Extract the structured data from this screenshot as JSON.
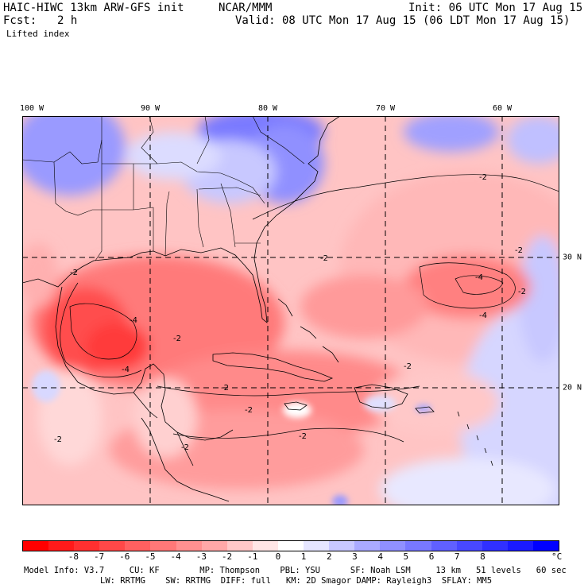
{
  "header": {
    "model": "HAIC-HIWC 13km ARW-GFS init",
    "org": "NCAR/MMM",
    "init": "Init: 06 UTC Mon 17 Aug 15",
    "fcst_label": "Fcst:",
    "fcst_value": "2 h",
    "valid": "Valid: 08 UTC Mon 17 Aug 15 (06 LDT Mon 17 Aug 15)",
    "field": "Lifted index"
  },
  "map": {
    "lon_labels": [
      "100 W",
      "90 W",
      "80 W",
      "70 W",
      "60 W"
    ],
    "lat_labels": [
      "30 N",
      "20 N"
    ],
    "contour_labels": [
      "-2",
      "-2",
      "-2",
      "-2",
      "-4",
      "-4",
      "-4",
      "-2",
      "-2",
      "-2",
      "-4",
      "-2",
      "-2",
      "-2",
      "-2",
      "-2"
    ]
  },
  "colorbar": {
    "labels": [
      "-8",
      "-7",
      "-6",
      "-5",
      "-4",
      "-3",
      "-2",
      "-1",
      "0",
      "1",
      "2",
      "3",
      "4",
      "5",
      "6",
      "7",
      "8"
    ],
    "unit": "°C",
    "colors": [
      "#ff0000",
      "#ff1a1a",
      "#ff3030",
      "#ff4848",
      "#ff6060",
      "#ff7878",
      "#ff9090",
      "#ffa8a8",
      "#ffc8c8",
      "#ffe6e6",
      "#ffffff",
      "#e6e6ff",
      "#c8c8ff",
      "#aaaaff",
      "#9090ff",
      "#7878ff",
      "#6060ff",
      "#4848ff",
      "#3030ff",
      "#1a1aff",
      "#0000ff"
    ]
  },
  "footer": {
    "line1": "Model Info: V3.7     CU: KF        MP: Thompson    PBL: YSU      SF: Noah LSM     13 km   51 levels   60 sec",
    "line2": "LW: RRTMG    SW: RRTMG  DIFF: full   KM: 2D Smagor DAMP: Rayleigh3  SFLAY: MM5"
  }
}
